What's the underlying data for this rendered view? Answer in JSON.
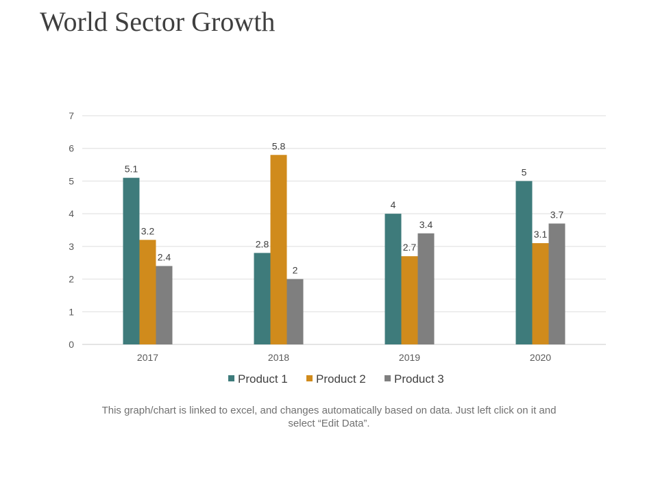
{
  "slide": {
    "title": "World Sector Growth",
    "caption": "This graph/chart is linked to excel, and changes automatically based on data. Just left click on it and select “Edit Data”."
  },
  "chart_data": {
    "type": "bar",
    "title": "",
    "xlabel": "",
    "ylabel": "",
    "categories": [
      "2017",
      "2018",
      "2019",
      "2020"
    ],
    "series": [
      {
        "name": "Product 1",
        "color": "#3e7b7b",
        "values": [
          5.1,
          2.8,
          4,
          5
        ]
      },
      {
        "name": "Product 2",
        "color": "#d08b1c",
        "values": [
          3.2,
          5.8,
          2.7,
          3.1
        ]
      },
      {
        "name": "Product 3",
        "color": "#7f7f7f",
        "values": [
          2.4,
          2,
          3.4,
          3.7
        ]
      }
    ],
    "ylim": [
      0,
      7
    ],
    "yticks": [
      0,
      1,
      2,
      3,
      4,
      5,
      6,
      7
    ],
    "grid": true,
    "legend": "bottom",
    "data_labels": true
  }
}
